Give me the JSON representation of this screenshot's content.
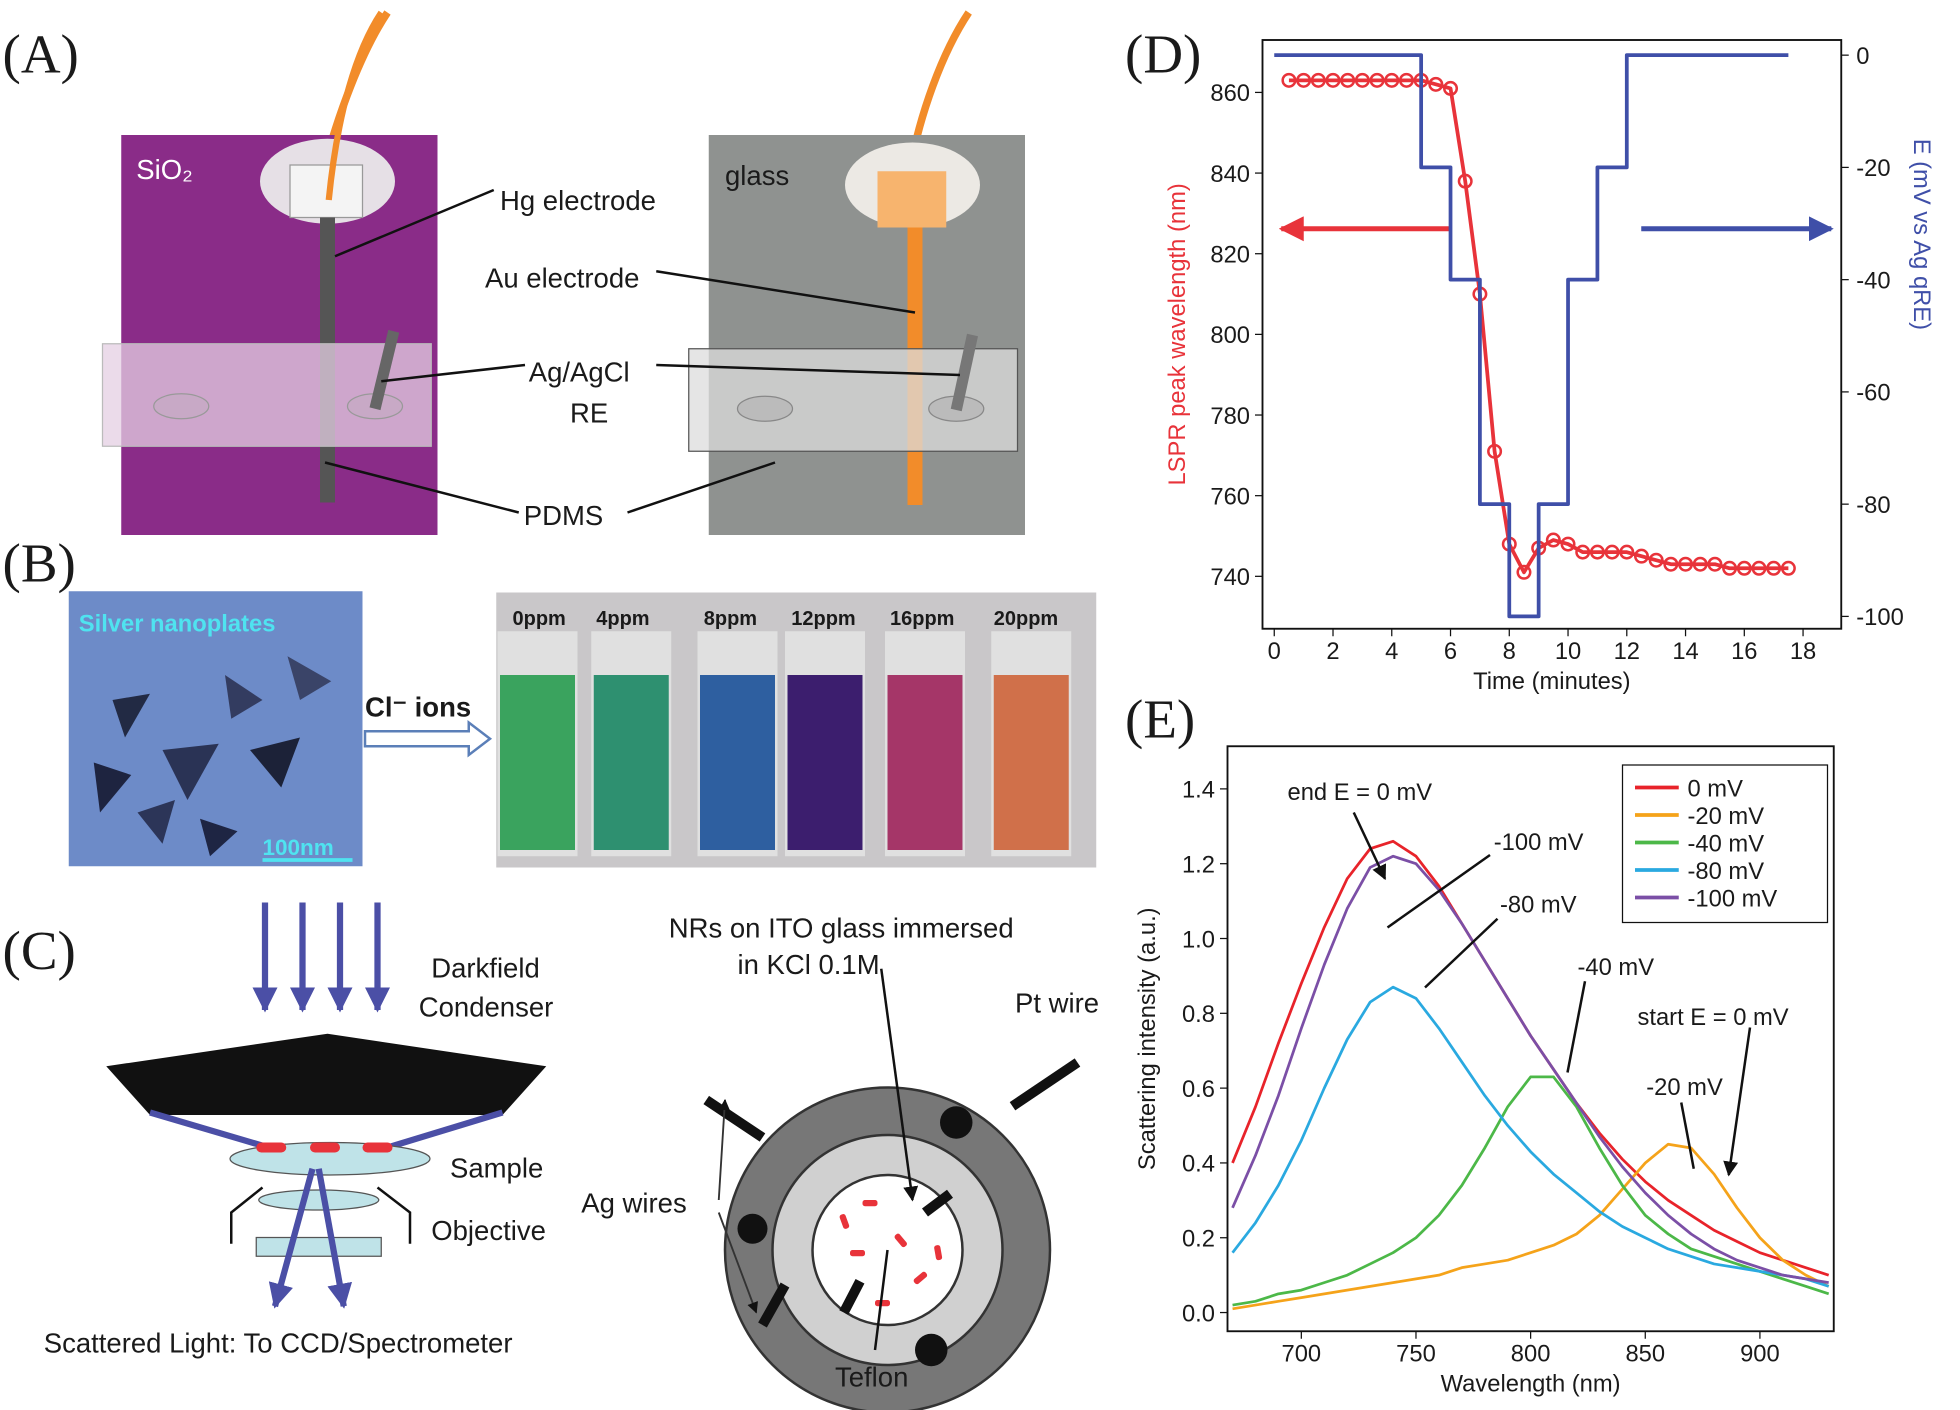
{
  "panel_labels": [
    "(A)",
    "(B)",
    "(C)",
    "(D)",
    "(E)"
  ],
  "panel_a": {
    "left_substrate": "SiO₂",
    "right_substrate": "glass",
    "labels": [
      "Hg electrode",
      "Au electrode",
      "Ag/AgCl",
      "RE",
      "PDMS"
    ]
  },
  "panel_b": {
    "image_label": "Silver nanoplates",
    "scale_bar": "100nm",
    "arrow_label": "Cl⁻ ions",
    "vials": [
      "0ppm",
      "4ppm",
      "8ppm",
      "12ppm",
      "16ppm",
      "20ppm"
    ]
  },
  "panel_c": {
    "labels": [
      "Darkfield",
      "Condenser",
      "Sample",
      "Objective",
      "Scattered Light: To CCD/Spectrometer",
      "NRs on ITO glass immersed",
      "in KCl 0.1M",
      "Pt wire",
      "Ag wires",
      "Teflon"
    ]
  },
  "chart_data": [
    {
      "type": "line",
      "x_label": "Time (minutes)",
      "y_label": "LSPR peak wavelength (nm)",
      "y2_label": "E (mV vs Ag qRE)",
      "xlim": [
        -0.4,
        19.3
      ],
      "ylim": [
        727,
        873
      ],
      "y2lim": [
        -102.2,
        2.7
      ],
      "xticks": [
        0,
        2,
        4,
        6,
        8,
        10,
        12,
        14,
        16,
        18
      ],
      "yticks": [
        740,
        760,
        780,
        800,
        820,
        840,
        860
      ],
      "y2ticks": [
        -100,
        -80,
        -60,
        -40,
        -20,
        0
      ],
      "series": [
        {
          "color": "#e8333a",
          "marker": "circle",
          "x": [
            0.5,
            1,
            1.5,
            2,
            2.5,
            3,
            3.5,
            4,
            4.5,
            5,
            5.5,
            6,
            6.5,
            7,
            7.5,
            8,
            8.5,
            9,
            9.5,
            10,
            10.5,
            11,
            11.5,
            12,
            12.5,
            13,
            13.5,
            14,
            14.5,
            15,
            15.5,
            16,
            16.5,
            17,
            17.5
          ],
          "values": [
            863,
            863,
            863,
            863,
            863,
            863,
            863,
            863,
            863,
            863,
            862,
            861,
            838,
            810,
            771,
            748,
            741,
            747,
            749,
            748,
            746,
            746,
            746,
            746,
            745,
            744,
            743,
            743,
            743,
            743,
            742,
            742,
            742,
            742,
            742
          ]
        },
        {
          "color": "#3f4fa8",
          "axis": "y2",
          "x": [
            0,
            5,
            5,
            6,
            6,
            7,
            7,
            8,
            8,
            9,
            9,
            10,
            10,
            11,
            11,
            12,
            12,
            17.5
          ],
          "values": [
            0,
            0,
            -20,
            -20,
            -40,
            -40,
            -80,
            -80,
            -100,
            -100,
            -80,
            -80,
            -40,
            -40,
            -20,
            -20,
            0,
            0
          ]
        }
      ]
    },
    {
      "type": "line",
      "x_label": "Wavelength (nm)",
      "y_label": "Scattering intensity (a.u.)",
      "xlim": [
        667.8,
        932.2
      ],
      "ylim": [
        -0.05,
        1.514
      ],
      "xticks": [
        700,
        750,
        800,
        850,
        900
      ],
      "yticks": [
        {
          "value": 0,
          "label": "0.0"
        },
        {
          "value": 0.2,
          "label": "0.2"
        },
        {
          "value": 0.4,
          "label": "0.4"
        },
        {
          "value": 0.6,
          "label": "0.6"
        },
        {
          "value": 0.8,
          "label": "0.8"
        },
        {
          "value": 1,
          "label": "1.0"
        },
        {
          "value": 1.2,
          "label": "1.2"
        },
        {
          "value": 1.4,
          "label": "1.4"
        }
      ],
      "legend": "upper right",
      "x": [
        670,
        680,
        690,
        700,
        710,
        720,
        730,
        740,
        750,
        760,
        770,
        780,
        790,
        800,
        810,
        820,
        830,
        840,
        850,
        860,
        870,
        880,
        890,
        900,
        910,
        920,
        930
      ],
      "series": [
        {
          "name": "0 mV",
          "color": "#e8232a",
          "values": [
            0.4,
            0.55,
            0.72,
            0.88,
            1.03,
            1.16,
            1.24,
            1.26,
            1.22,
            1.14,
            1.04,
            0.94,
            0.84,
            0.74,
            0.65,
            0.56,
            0.48,
            0.41,
            0.35,
            0.3,
            0.26,
            0.22,
            0.19,
            0.16,
            0.14,
            0.12,
            0.1
          ]
        },
        {
          "name": "-20 mV",
          "color": "#f5a31a",
          "values": [
            0.01,
            0.02,
            0.03,
            0.04,
            0.05,
            0.06,
            0.07,
            0.08,
            0.09,
            0.1,
            0.12,
            0.13,
            0.14,
            0.16,
            0.18,
            0.21,
            0.26,
            0.33,
            0.4,
            0.45,
            0.44,
            0.37,
            0.28,
            0.2,
            0.14,
            0.1,
            0.07
          ]
        },
        {
          "name": "-40 mV",
          "color": "#4cb848",
          "values": [
            0.02,
            0.03,
            0.05,
            0.06,
            0.08,
            0.1,
            0.13,
            0.16,
            0.2,
            0.26,
            0.34,
            0.44,
            0.55,
            0.63,
            0.63,
            0.55,
            0.44,
            0.34,
            0.26,
            0.21,
            0.17,
            0.15,
            0.13,
            0.11,
            0.09,
            0.07,
            0.05
          ]
        },
        {
          "name": "-80 mV",
          "color": "#2aa9e0",
          "values": [
            0.16,
            0.24,
            0.34,
            0.46,
            0.6,
            0.73,
            0.83,
            0.87,
            0.84,
            0.76,
            0.67,
            0.58,
            0.5,
            0.43,
            0.37,
            0.32,
            0.27,
            0.23,
            0.2,
            0.17,
            0.15,
            0.13,
            0.12,
            0.11,
            0.1,
            0.09,
            0.07
          ]
        },
        {
          "name": "-100 mV",
          "color": "#7b4fa6",
          "values": [
            0.28,
            0.42,
            0.58,
            0.76,
            0.93,
            1.08,
            1.19,
            1.22,
            1.2,
            1.13,
            1.04,
            0.94,
            0.84,
            0.74,
            0.65,
            0.56,
            0.47,
            0.39,
            0.32,
            0.26,
            0.21,
            0.17,
            0.14,
            0.12,
            0.1,
            0.09,
            0.08
          ]
        }
      ],
      "annotations": [
        "end E = 0 mV",
        "-100 mV",
        "-80 mV",
        "-40 mV",
        "start E = 0 mV",
        "-20 mV"
      ]
    }
  ]
}
